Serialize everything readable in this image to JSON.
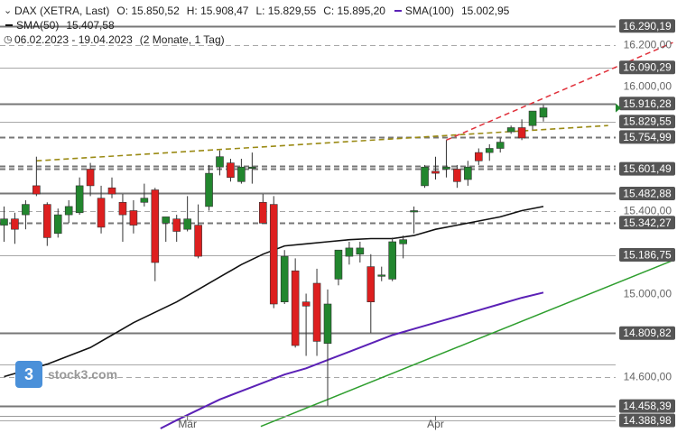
{
  "legend": {
    "instrument": "DAX (XETRA, Last)",
    "open": "O: 15.850,52",
    "high": "H: 15.908,47",
    "low": "L: 15.829,55",
    "close": "C: 15.895,20",
    "sma100_label": "SMA(100)",
    "sma100_value": "15.002,95",
    "sma50_label": "SMA(50)",
    "sma50_value": "15.407,58",
    "period": "06.02.2023 - 19.04.2023",
    "period_note": "(2 Monate, 1 Tag)"
  },
  "logo": {
    "text": "stock3.com",
    "mark": "3"
  },
  "colors": {
    "up": "#22862e",
    "down": "#dd1f1f",
    "sma50": "#111111",
    "sma100": "#5b21b6",
    "support_trend": "#2e9e2e",
    "resistance_trend": "#e0303a",
    "olive_trend": "#9a8a14",
    "level_line": "#666666"
  },
  "chart_data": {
    "type": "candlestick",
    "title": "DAX (XETRA, Last)",
    "x_ticks": [
      {
        "index": 17,
        "label": "Mär"
      },
      {
        "index": 40,
        "label": "Apr"
      }
    ],
    "ylim": [
      14350,
      16350
    ],
    "y_ticks": [
      {
        "value": 16200,
        "label": "16.200,00"
      },
      {
        "value": 16000,
        "label": "16.000,00"
      },
      {
        "value": 15400,
        "label": "15.400,00"
      },
      {
        "value": 15000,
        "label": "15.000,00"
      },
      {
        "value": 14600,
        "label": "14.600,00"
      }
    ],
    "levels": [
      {
        "value": 16290.19,
        "label": "16.290,19",
        "style": "solid",
        "emphasis": true
      },
      {
        "value": 16200.0,
        "style": "dashed",
        "emphasis": false
      },
      {
        "value": 16090.29,
        "label": "16.090,29",
        "style": "solid",
        "emphasis": false
      },
      {
        "value": 15916.28,
        "label": "15.916,28",
        "style": "solid",
        "emphasis": true
      },
      {
        "value": 15829.55,
        "label": "15.829,55",
        "style": "solid",
        "emphasis": false
      },
      {
        "value": 15754.99,
        "label": "15.754,99",
        "style": "dashed",
        "emphasis": true
      },
      {
        "value": 15615.0,
        "style": "dashed",
        "emphasis": true
      },
      {
        "value": 15601.49,
        "label": "15.601,49",
        "style": "dashed",
        "emphasis": true
      },
      {
        "value": 15482.88,
        "label": "15.482,88",
        "style": "solid",
        "emphasis": true
      },
      {
        "value": 15400.0,
        "style": "dashed",
        "emphasis": false
      },
      {
        "value": 15342.27,
        "label": "15.342,27",
        "style": "dashed",
        "emphasis": true
      },
      {
        "value": 15186.75,
        "label": "15.186,75",
        "style": "solid",
        "emphasis": false
      },
      {
        "value": 14809.82,
        "label": "14.809,82",
        "style": "solid",
        "emphasis": true
      },
      {
        "value": 14660.0,
        "style": "solid",
        "emphasis": false
      },
      {
        "value": 14600.0,
        "style": "dashed",
        "emphasis": false
      },
      {
        "value": 14458.39,
        "label": "14.458,39",
        "style": "solid",
        "emphasis": true
      },
      {
        "value": 14388.98,
        "label": "14.388,98",
        "style": "solid",
        "emphasis": false
      }
    ],
    "candles": [
      {
        "o": 15330,
        "h": 15420,
        "l": 15250,
        "c": 15360
      },
      {
        "o": 15360,
        "h": 15390,
        "l": 15240,
        "c": 15310
      },
      {
        "o": 15380,
        "h": 15450,
        "l": 15310,
        "c": 15430
      },
      {
        "o": 15520,
        "h": 15660,
        "l": 15470,
        "c": 15480
      },
      {
        "o": 15430,
        "h": 15440,
        "l": 15230,
        "c": 15270
      },
      {
        "o": 15290,
        "h": 15410,
        "l": 15270,
        "c": 15380
      },
      {
        "o": 15380,
        "h": 15450,
        "l": 15340,
        "c": 15420
      },
      {
        "o": 15390,
        "h": 15560,
        "l": 15380,
        "c": 15520
      },
      {
        "o": 15600,
        "h": 15630,
        "l": 15470,
        "c": 15520
      },
      {
        "o": 15460,
        "h": 15520,
        "l": 15290,
        "c": 15320
      },
      {
        "o": 15510,
        "h": 15560,
        "l": 15460,
        "c": 15480
      },
      {
        "o": 15440,
        "h": 15480,
        "l": 15250,
        "c": 15380
      },
      {
        "o": 15400,
        "h": 15450,
        "l": 15290,
        "c": 15330
      },
      {
        "o": 15440,
        "h": 15530,
        "l": 15420,
        "c": 15460
      },
      {
        "o": 15500,
        "h": 15510,
        "l": 15060,
        "c": 15150
      },
      {
        "o": 15340,
        "h": 15370,
        "l": 15250,
        "c": 15370
      },
      {
        "o": 15360,
        "h": 15380,
        "l": 15250,
        "c": 15300
      },
      {
        "o": 15310,
        "h": 15470,
        "l": 15300,
        "c": 15360
      },
      {
        "o": 15330,
        "h": 15430,
        "l": 15170,
        "c": 15180
      },
      {
        "o": 15420,
        "h": 15620,
        "l": 15400,
        "c": 15580
      },
      {
        "o": 15610,
        "h": 15690,
        "l": 15570,
        "c": 15660
      },
      {
        "o": 15630,
        "h": 15650,
        "l": 15540,
        "c": 15560
      },
      {
        "o": 15540,
        "h": 15650,
        "l": 15530,
        "c": 15610
      },
      {
        "o": 15610,
        "h": 15680,
        "l": 15530,
        "c": 15610
      },
      {
        "o": 15440,
        "h": 15480,
        "l": 15340,
        "c": 15340
      },
      {
        "o": 15430,
        "h": 15470,
        "l": 14930,
        "c": 14950
      },
      {
        "o": 14960,
        "h": 15210,
        "l": 14950,
        "c": 15180
      },
      {
        "o": 15110,
        "h": 15170,
        "l": 14740,
        "c": 14750
      },
      {
        "o": 14960,
        "h": 15000,
        "l": 14700,
        "c": 14940
      },
      {
        "o": 15050,
        "h": 15120,
        "l": 14700,
        "c": 14770
      },
      {
        "o": 14760,
        "h": 15020,
        "l": 14460,
        "c": 14950
      },
      {
        "o": 15070,
        "h": 15210,
        "l": 15040,
        "c": 15210
      },
      {
        "o": 15180,
        "h": 15250,
        "l": 15140,
        "c": 15220
      },
      {
        "o": 15190,
        "h": 15250,
        "l": 15150,
        "c": 15220
      },
      {
        "o": 15130,
        "h": 15190,
        "l": 14810,
        "c": 14960
      },
      {
        "o": 15090,
        "h": 15130,
        "l": 15060,
        "c": 15090
      },
      {
        "o": 15070,
        "h": 15270,
        "l": 15060,
        "c": 15250
      },
      {
        "o": 15240,
        "h": 15280,
        "l": 15170,
        "c": 15260
      },
      {
        "o": 15400,
        "h": 15420,
        "l": 15290,
        "c": 15400
      },
      {
        "o": 15520,
        "h": 15620,
        "l": 15510,
        "c": 15610
      },
      {
        "o": 15590,
        "h": 15660,
        "l": 15550,
        "c": 15580
      },
      {
        "o": 15600,
        "h": 15740,
        "l": 15560,
        "c": 15610
      },
      {
        "o": 15600,
        "h": 15620,
        "l": 15510,
        "c": 15540
      },
      {
        "o": 15550,
        "h": 15640,
        "l": 15520,
        "c": 15610
      },
      {
        "o": 15680,
        "h": 15700,
        "l": 15620,
        "c": 15640
      },
      {
        "o": 15680,
        "h": 15720,
        "l": 15640,
        "c": 15700
      },
      {
        "o": 15700,
        "h": 15750,
        "l": 15680,
        "c": 15730
      },
      {
        "o": 15780,
        "h": 15810,
        "l": 15770,
        "c": 15800
      },
      {
        "o": 15800,
        "h": 15840,
        "l": 15740,
        "c": 15750
      },
      {
        "o": 15810,
        "h": 15870,
        "l": 15790,
        "c": 15880
      },
      {
        "o": 15850.52,
        "h": 15908.47,
        "l": 15829.55,
        "c": 15895.2
      }
    ],
    "sma50": [
      [
        0,
        14600
      ],
      [
        4,
        14660
      ],
      [
        6,
        14700
      ],
      [
        8,
        14740
      ],
      [
        10,
        14800
      ],
      [
        12,
        14860
      ],
      [
        14,
        14910
      ],
      [
        16,
        14960
      ],
      [
        18,
        15020
      ],
      [
        20,
        15080
      ],
      [
        22,
        15140
      ],
      [
        24,
        15190
      ],
      [
        26,
        15230
      ],
      [
        28,
        15240
      ],
      [
        30,
        15250
      ],
      [
        32,
        15260
      ],
      [
        34,
        15265
      ],
      [
        36,
        15265
      ],
      [
        38,
        15280
      ],
      [
        40,
        15310
      ],
      [
        42,
        15330
      ],
      [
        44,
        15350
      ],
      [
        46,
        15370
      ],
      [
        48,
        15400
      ],
      [
        50,
        15420
      ]
    ],
    "sma100": [
      [
        14.5,
        14350
      ],
      [
        16,
        14390
      ],
      [
        18,
        14440
      ],
      [
        20,
        14490
      ],
      [
        22,
        14530
      ],
      [
        24,
        14570
      ],
      [
        26,
        14610
      ],
      [
        28,
        14640
      ],
      [
        30,
        14680
      ],
      [
        32,
        14720
      ],
      [
        34,
        14760
      ],
      [
        36,
        14800
      ],
      [
        38,
        14830
      ],
      [
        40,
        14860
      ],
      [
        42,
        14890
      ],
      [
        44,
        14920
      ],
      [
        46,
        14950
      ],
      [
        48,
        14980
      ],
      [
        50,
        15005
      ]
    ],
    "trendlines": [
      {
        "name": "support",
        "from": [
          23.8,
          14360
        ],
        "to": [
          62,
          15160
        ],
        "style": "solid"
      },
      {
        "name": "olive",
        "from": [
          3,
          15640
        ],
        "to": [
          56,
          15810
        ],
        "style": "dashed"
      },
      {
        "name": "resistance",
        "from": [
          41,
          15740
        ],
        "to": [
          62,
          16210
        ],
        "style": "dashed"
      }
    ]
  }
}
